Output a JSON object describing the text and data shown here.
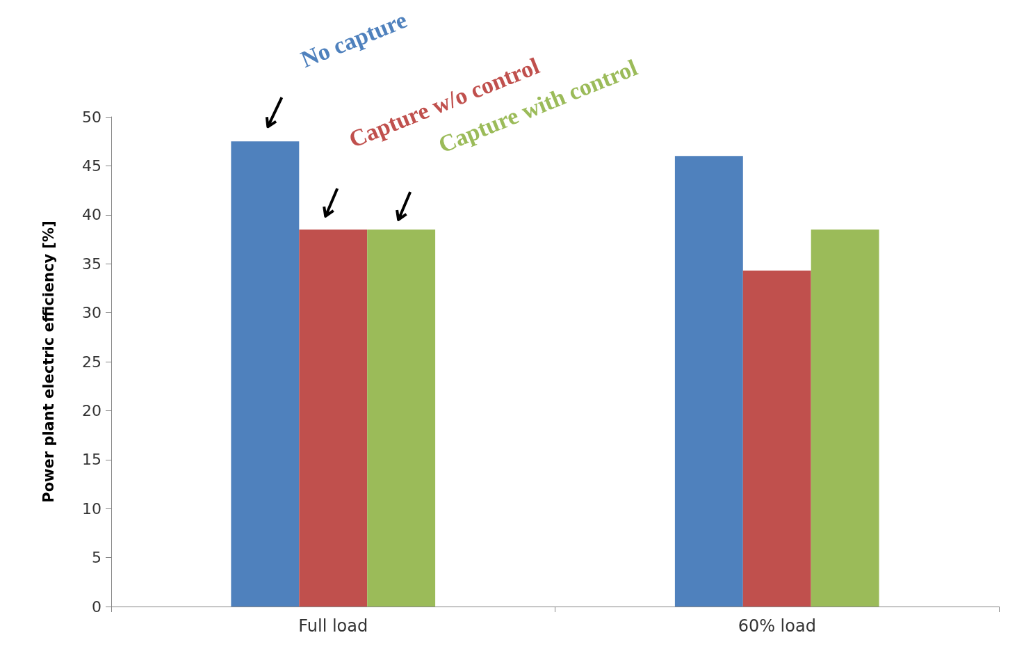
{
  "chart_data": {
    "type": "bar",
    "ylabel": "Power plant electric efficiency [%]",
    "categories": [
      "Full load",
      "60% load"
    ],
    "series": [
      {
        "name": "No capture",
        "color": "#4f81bd",
        "values": [
          47.5,
          46.0
        ]
      },
      {
        "name": "Capture w/o control",
        "color": "#c0504d",
        "values": [
          38.5,
          34.3
        ]
      },
      {
        "name": "Capture with control",
        "color": "#9bbb59",
        "values": [
          38.5,
          38.5
        ]
      }
    ],
    "ylim": [
      0,
      50
    ],
    "yticks": [
      0,
      5,
      10,
      15,
      20,
      25,
      30,
      35,
      40,
      45,
      50
    ],
    "grid": false,
    "legend": false
  }
}
